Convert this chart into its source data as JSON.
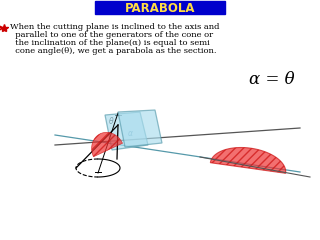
{
  "title": "PARABOLA",
  "title_bg": "#0000cc",
  "title_fg": "#ffdd44",
  "bullet_color": "#cc0000",
  "text_color": "#000000",
  "body_lines": [
    "When the cutting plane is inclined to the axis and",
    "  parallel to one of the generators of the cone or",
    "  the inclination of the plane(α) is equal to semi",
    "  cone angle(θ), we get a parabola as the section."
  ],
  "equation": "α = θ",
  "cone_outline": "#000000",
  "plane_fill": "#aaddee",
  "plane_edge": "#5599aa",
  "section_fill": "#ee3333",
  "section_edge": "#cc1111",
  "hatch": "////",
  "bg_color": "#ffffff",
  "axis_color": "#5599aa",
  "generator_color": "#555555"
}
